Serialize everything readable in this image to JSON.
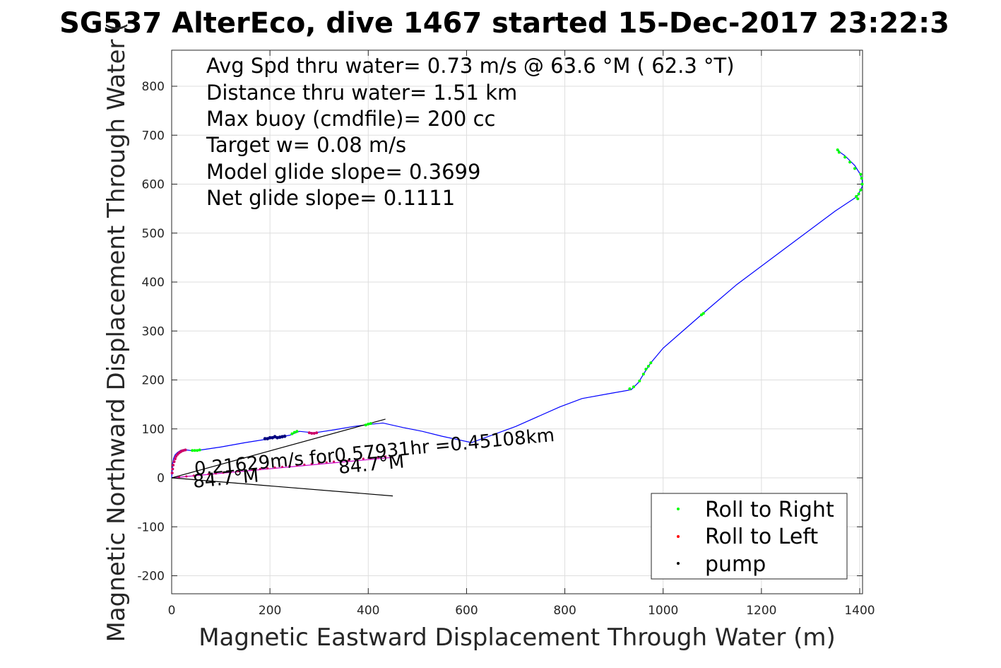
{
  "chart_data": {
    "type": "line",
    "title": "SG537 AlterEco, dive 1467 started 15-Dec-2017 23:22:3",
    "xlabel": "Magnetic Eastward Displacement Through Water (m)",
    "ylabel": "Magnetic Northward Displacement Through Water (",
    "xlim": [
      0,
      1400
    ],
    "ylim": [
      -235,
      875
    ],
    "xticks": [
      "0",
      "200",
      "400",
      "600",
      "800",
      "1000",
      "1200",
      "1400"
    ],
    "yticks": [
      "-200",
      "-100",
      "0",
      "100",
      "200",
      "300",
      "400",
      "500",
      "600",
      "700",
      "800"
    ],
    "grid": true,
    "annotations": [
      "Avg Spd thru water=  0.73 m/s @  63.6 °M ( 62.3 °T)",
      "Distance thru water=  1.51 km",
      "Max buoy (cmdfile)= 200 cc",
      "Target w= 0.08 m/s",
      "Model glide slope= 0.3699",
      "Net glide slope= 0.1111"
    ],
    "plot_labels": {
      "current": "0.21629m/s for0.57931hr =0.45108km",
      "heading_left": "84.7°M",
      "heading_right": "84.7°M"
    },
    "series": [
      {
        "kind": "track",
        "color": "#0000ff",
        "x": [
          0,
          1,
          2,
          4,
          7,
          12,
          18,
          25,
          30,
          45,
          60,
          100,
          150,
          200,
          240,
          260,
          290,
          330,
          370,
          410,
          430,
          470,
          510,
          550,
          610,
          700,
          790,
          835,
          890,
          935,
          950,
          962,
          975,
          1000,
          1040,
          1080,
          1150,
          1250,
          1350,
          1395,
          1405,
          1405,
          1400,
          1390,
          1380,
          1370,
          1360,
          1355
        ],
        "y": [
          0,
          15,
          30,
          40,
          47,
          52,
          56,
          58,
          57,
          55,
          57,
          63,
          72,
          80,
          87,
          95,
          92,
          98,
          105,
          110,
          112,
          103,
          95,
          85,
          72,
          105,
          145,
          162,
          172,
          180,
          195,
          215,
          235,
          265,
          300,
          335,
          395,
          470,
          545,
          575,
          595,
          610,
          622,
          638,
          648,
          658,
          665,
          672
        ]
      },
      {
        "kind": "roll_right_points",
        "name": "Roll to Right",
        "color": "#00ff00",
        "x": [
          42,
          47,
          52,
          57,
          245,
          250,
          255,
          395,
          400,
          405,
          932,
          940,
          952,
          960,
          965,
          970,
          975,
          1078,
          1082,
          1355,
          1358,
          1370,
          1380,
          1390,
          1393,
          1398,
          1402,
          1405,
          1404,
          1402,
          1396
        ],
        "y": [
          56,
          56,
          56,
          57,
          90,
          93,
          95,
          108,
          110,
          111,
          182,
          186,
          198,
          212,
          222,
          228,
          235,
          333,
          336,
          670,
          665,
          655,
          645,
          632,
          575,
          580,
          588,
          600,
          612,
          620,
          570
        ]
      },
      {
        "kind": "roll_left_points",
        "name": "Roll to Left",
        "color": "#cc0066",
        "x": [
          1,
          2,
          3,
          5,
          7,
          9,
          12,
          15,
          18,
          21,
          24,
          28,
          280,
          285,
          290,
          295
        ],
        "y": [
          10,
          18,
          26,
          33,
          39,
          44,
          48,
          51,
          53,
          55,
          56,
          57,
          92,
          91,
          91,
          92
        ],
        "extra_x": [
          15,
          30,
          45,
          60,
          75,
          90,
          105,
          120,
          135,
          150,
          165,
          180,
          195,
          210,
          225,
          240,
          255,
          270,
          285,
          300,
          315,
          330,
          345,
          360,
          375,
          390,
          405,
          420,
          435
        ],
        "extra_y": [
          1.5,
          3,
          4.5,
          6,
          7.5,
          9,
          10.5,
          12,
          13.5,
          15,
          16.5,
          18,
          19.5,
          21,
          22.5,
          24,
          25.5,
          27,
          28.5,
          30,
          31.5,
          33,
          34.5,
          36,
          37.5,
          39,
          40.5,
          42,
          43.5
        ]
      },
      {
        "kind": "pump_points",
        "name": "pump",
        "color": "#000080",
        "x": [
          190,
          195,
          200,
          205,
          210,
          215,
          220,
          225,
          230
        ],
        "y": [
          80,
          80,
          82,
          82,
          84,
          82,
          83,
          84,
          85
        ]
      },
      {
        "kind": "current_line",
        "color": "#cc00cc",
        "x": [
          0,
          450
        ],
        "y": [
          0,
          41.9
        ]
      },
      {
        "kind": "heading_lines",
        "color": "#000000",
        "lines": [
          {
            "x": [
              0,
              435
            ],
            "y": [
              0,
              120
            ]
          },
          {
            "x": [
              0,
              450
            ],
            "y": [
              0,
              -37
            ]
          }
        ]
      }
    ],
    "legend": {
      "placement": "bottom-right",
      "entries": [
        {
          "label": "Roll to Right",
          "color": "#00ff00"
        },
        {
          "label": "Roll to Left",
          "color": "#ff0000"
        },
        {
          "label": "pump",
          "color": "#000000"
        }
      ]
    }
  }
}
